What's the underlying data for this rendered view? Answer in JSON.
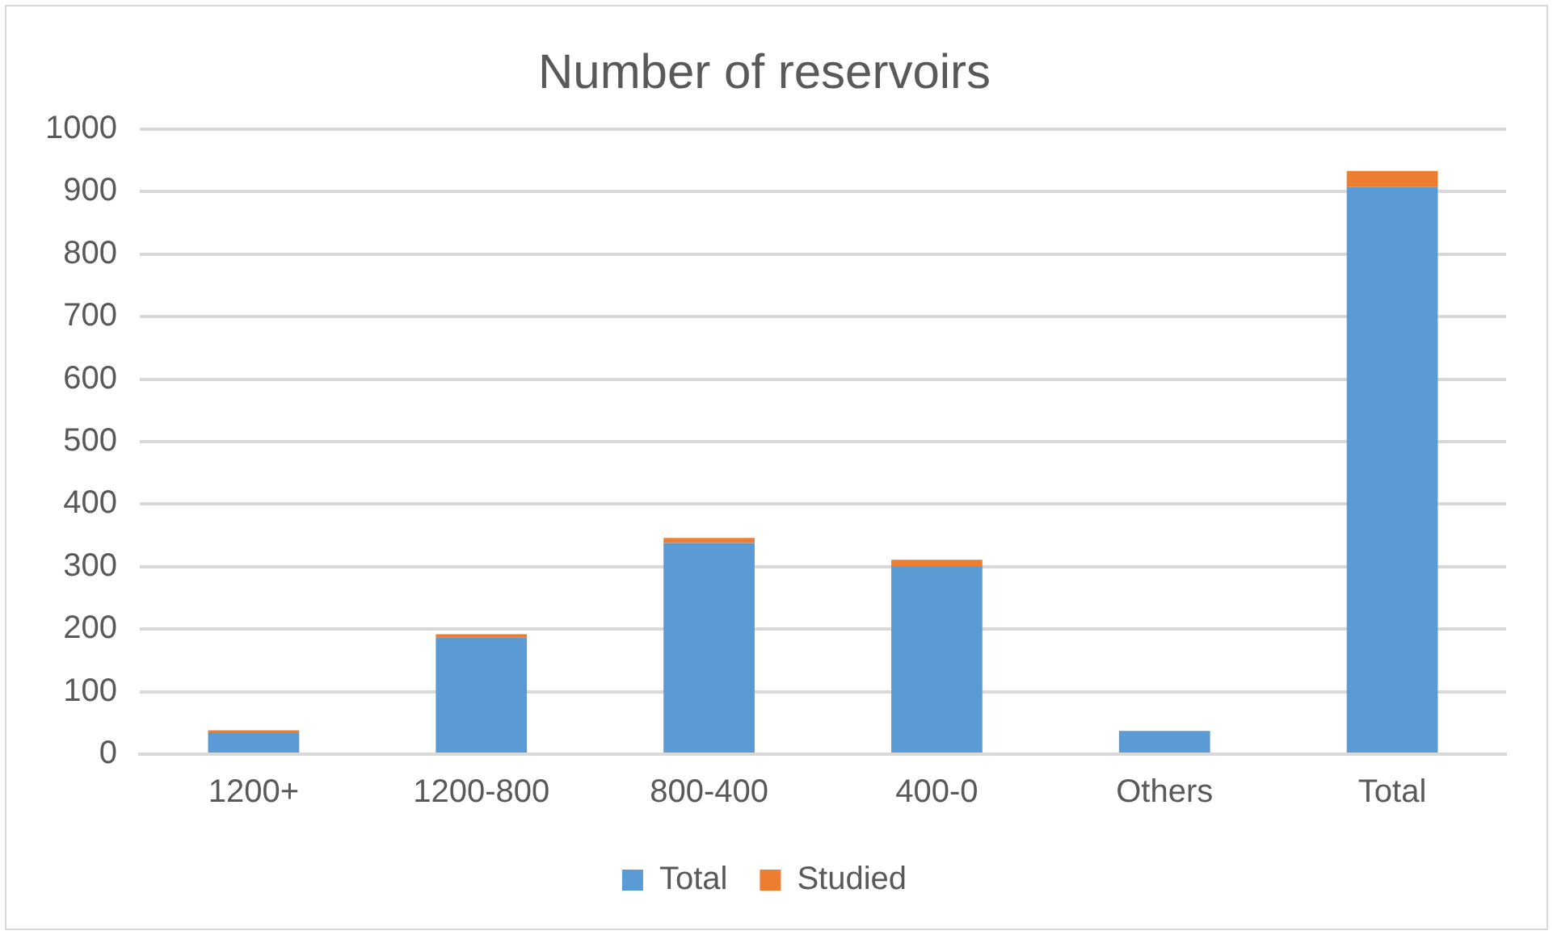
{
  "chart_data": {
    "type": "bar",
    "title": "Number of reservoirs",
    "categories": [
      "1200+",
      "1200-800",
      "800-400",
      "400-0",
      "Others",
      "Total"
    ],
    "stacked": true,
    "series": [
      {
        "name": "Total",
        "color": "#5b9bd5",
        "values": [
          35,
          187,
          338,
          301,
          37,
          908
        ]
      },
      {
        "name": "Studied",
        "color": "#ed7d31",
        "values": [
          3,
          5,
          8,
          10,
          0,
          25
        ]
      }
    ],
    "ylim": [
      0,
      1000
    ],
    "yticks": [
      0,
      100,
      200,
      300,
      400,
      500,
      600,
      700,
      800,
      900,
      1000
    ],
    "grid": "y",
    "legend": "bottom"
  }
}
